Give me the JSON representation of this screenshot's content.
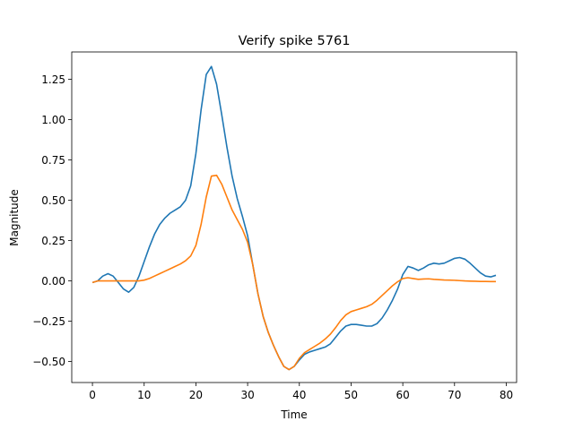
{
  "chart_data": {
    "type": "line",
    "title": "Verify spike 5761",
    "xlabel": "Time",
    "ylabel": "Magnitude",
    "xlim": [
      -4,
      82
    ],
    "ylim": [
      -0.63,
      1.42
    ],
    "xticks": [
      0,
      10,
      20,
      30,
      40,
      50,
      60,
      70,
      80
    ],
    "xtick_labels": [
      "0",
      "10",
      "20",
      "30",
      "40",
      "50",
      "60",
      "70",
      "80"
    ],
    "yticks": [
      -0.5,
      -0.25,
      0.0,
      0.25,
      0.5,
      0.75,
      1.0,
      1.25
    ],
    "ytick_labels": [
      "−0.50",
      "−0.25",
      "0.00",
      "0.25",
      "0.50",
      "0.75",
      "1.00",
      "1.25"
    ],
    "grid": false,
    "legend": "none",
    "x": [
      0,
      1,
      2,
      3,
      4,
      5,
      6,
      7,
      8,
      9,
      10,
      11,
      12,
      13,
      14,
      15,
      16,
      17,
      18,
      19,
      20,
      21,
      22,
      23,
      24,
      25,
      26,
      27,
      28,
      29,
      30,
      31,
      32,
      33,
      34,
      35,
      36,
      37,
      38,
      39,
      40,
      41,
      42,
      43,
      44,
      45,
      46,
      47,
      48,
      49,
      50,
      51,
      52,
      53,
      54,
      55,
      56,
      57,
      58,
      59,
      60,
      61,
      62,
      63,
      64,
      65,
      66,
      67,
      68,
      69,
      70,
      71,
      72,
      73,
      74,
      75,
      76,
      77,
      78
    ],
    "series": [
      {
        "color": "#1f77b4",
        "values": [
          -0.01,
          0.0,
          0.03,
          0.045,
          0.03,
          -0.01,
          -0.05,
          -0.07,
          -0.04,
          0.03,
          0.12,
          0.21,
          0.29,
          0.35,
          0.39,
          0.42,
          0.44,
          0.46,
          0.5,
          0.59,
          0.79,
          1.06,
          1.28,
          1.33,
          1.22,
          1.03,
          0.83,
          0.65,
          0.51,
          0.4,
          0.28,
          0.1,
          -0.08,
          -0.22,
          -0.32,
          -0.4,
          -0.47,
          -0.53,
          -0.55,
          -0.53,
          -0.49,
          -0.455,
          -0.44,
          -0.43,
          -0.42,
          -0.41,
          -0.39,
          -0.35,
          -0.31,
          -0.28,
          -0.27,
          -0.27,
          -0.275,
          -0.28,
          -0.28,
          -0.265,
          -0.23,
          -0.18,
          -0.12,
          -0.05,
          0.04,
          0.09,
          0.08,
          0.065,
          0.08,
          0.1,
          0.11,
          0.105,
          0.11,
          0.125,
          0.14,
          0.145,
          0.135,
          0.11,
          0.08,
          0.05,
          0.03,
          0.025,
          0.035
        ]
      },
      {
        "color": "#ff7f0e",
        "values": [
          -0.01,
          0.0,
          0.0,
          0.0,
          0.0,
          0.0,
          0.0,
          0.0,
          0.0,
          0.0,
          0.005,
          0.015,
          0.03,
          0.045,
          0.06,
          0.075,
          0.09,
          0.105,
          0.125,
          0.155,
          0.22,
          0.35,
          0.52,
          0.65,
          0.655,
          0.6,
          0.52,
          0.44,
          0.38,
          0.32,
          0.24,
          0.1,
          -0.08,
          -0.22,
          -0.32,
          -0.4,
          -0.47,
          -0.53,
          -0.55,
          -0.53,
          -0.48,
          -0.445,
          -0.425,
          -0.405,
          -0.385,
          -0.36,
          -0.33,
          -0.29,
          -0.245,
          -0.21,
          -0.19,
          -0.18,
          -0.17,
          -0.16,
          -0.145,
          -0.12,
          -0.09,
          -0.06,
          -0.03,
          -0.005,
          0.015,
          0.02,
          0.015,
          0.01,
          0.012,
          0.013,
          0.01,
          0.008,
          0.006,
          0.005,
          0.004,
          0.002,
          0.0,
          -0.001,
          -0.002,
          -0.003,
          -0.003,
          -0.004,
          -0.004
        ]
      }
    ]
  }
}
